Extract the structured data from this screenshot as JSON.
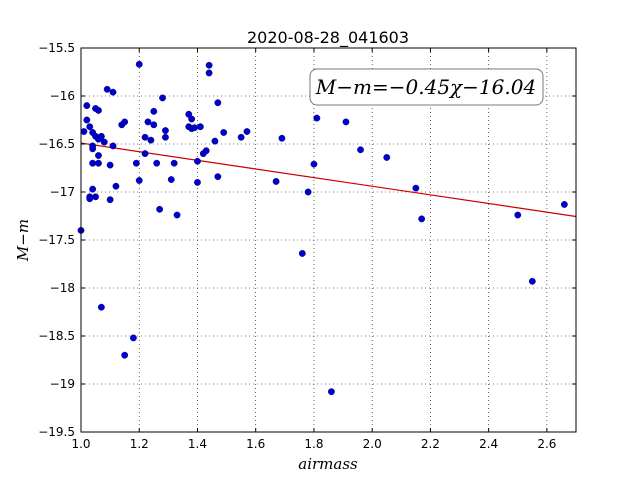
{
  "chart_data": {
    "type": "scatter",
    "title": "2020-08-28_041603",
    "xlabel": "airmass",
    "ylabel": "M−m",
    "xlim": [
      1.0,
      2.7
    ],
    "ylim": [
      -19.5,
      -15.5
    ],
    "y_inverted": false,
    "grid": true,
    "x_ticks": [
      "1.0",
      "1.2",
      "1.4",
      "1.6",
      "1.8",
      "2.0",
      "2.2",
      "2.4",
      "2.6"
    ],
    "x_tick_values": [
      1.0,
      1.2,
      1.4,
      1.6,
      1.8,
      2.0,
      2.2,
      2.4,
      2.6
    ],
    "y_ticks": [
      "−15.5",
      "−16",
      "−16.5",
      "−17",
      "−17.5",
      "−18",
      "−18.5",
      "−19",
      "−19.5"
    ],
    "y_tick_values": [
      -15.5,
      -16.0,
      -16.5,
      -17.0,
      -17.5,
      -18.0,
      -18.5,
      -19.0,
      -19.5
    ],
    "point_color": "#0000cc",
    "fit_color": "#cc0000",
    "fit": {
      "slope": -0.45,
      "intercept": -16.04,
      "label": "M−m=−0.45χ−16.04"
    },
    "points": [
      [
        1.0,
        -17.4
      ],
      [
        1.01,
        -16.37
      ],
      [
        1.02,
        -16.1
      ],
      [
        1.02,
        -16.25
      ],
      [
        1.03,
        -16.32
      ],
      [
        1.03,
        -17.05
      ],
      [
        1.03,
        -17.07
      ],
      [
        1.04,
        -16.55
      ],
      [
        1.04,
        -16.52
      ],
      [
        1.04,
        -16.7
      ],
      [
        1.04,
        -16.97
      ],
      [
        1.04,
        -16.38
      ],
      [
        1.05,
        -16.13
      ],
      [
        1.05,
        -16.42
      ],
      [
        1.05,
        -17.05
      ],
      [
        1.06,
        -16.15
      ],
      [
        1.06,
        -16.45
      ],
      [
        1.06,
        -16.62
      ],
      [
        1.06,
        -16.7
      ],
      [
        1.07,
        -18.2
      ],
      [
        1.07,
        -16.42
      ],
      [
        1.08,
        -16.48
      ],
      [
        1.09,
        -15.93
      ],
      [
        1.1,
        -16.72
      ],
      [
        1.1,
        -17.08
      ],
      [
        1.11,
        -15.96
      ],
      [
        1.11,
        -16.52
      ],
      [
        1.12,
        -16.94
      ],
      [
        1.14,
        -16.3
      ],
      [
        1.15,
        -18.7
      ],
      [
        1.15,
        -16.27
      ],
      [
        1.18,
        -18.52
      ],
      [
        1.19,
        -16.7
      ],
      [
        1.2,
        -15.67
      ],
      [
        1.2,
        -16.88
      ],
      [
        1.22,
        -16.43
      ],
      [
        1.22,
        -16.6
      ],
      [
        1.23,
        -16.27
      ],
      [
        1.24,
        -16.46
      ],
      [
        1.25,
        -16.3
      ],
      [
        1.25,
        -16.16
      ],
      [
        1.26,
        -16.7
      ],
      [
        1.27,
        -17.18
      ],
      [
        1.28,
        -16.02
      ],
      [
        1.29,
        -16.43
      ],
      [
        1.29,
        -16.36
      ],
      [
        1.31,
        -16.87
      ],
      [
        1.32,
        -16.7
      ],
      [
        1.33,
        -17.24
      ],
      [
        1.37,
        -16.32
      ],
      [
        1.37,
        -16.19
      ],
      [
        1.38,
        -16.34
      ],
      [
        1.38,
        -16.24
      ],
      [
        1.39,
        -16.33
      ],
      [
        1.4,
        -16.68
      ],
      [
        1.4,
        -16.9
      ],
      [
        1.41,
        -16.32
      ],
      [
        1.42,
        -16.6
      ],
      [
        1.43,
        -16.57
      ],
      [
        1.44,
        -15.68
      ],
      [
        1.44,
        -15.76
      ],
      [
        1.46,
        -16.47
      ],
      [
        1.47,
        -16.07
      ],
      [
        1.47,
        -16.84
      ],
      [
        1.49,
        -16.38
      ],
      [
        1.55,
        -16.43
      ],
      [
        1.57,
        -16.37
      ],
      [
        1.67,
        -16.89
      ],
      [
        1.69,
        -16.44
      ],
      [
        1.76,
        -17.64
      ],
      [
        1.78,
        -17.0
      ],
      [
        1.8,
        -16.71
      ],
      [
        1.81,
        -16.23
      ],
      [
        1.86,
        -19.08
      ],
      [
        1.91,
        -16.27
      ],
      [
        1.96,
        -16.56
      ],
      [
        2.05,
        -16.64
      ],
      [
        2.15,
        -16.96
      ],
      [
        2.17,
        -17.28
      ],
      [
        2.5,
        -17.24
      ],
      [
        2.55,
        -17.93
      ],
      [
        2.66,
        -17.13
      ]
    ]
  }
}
